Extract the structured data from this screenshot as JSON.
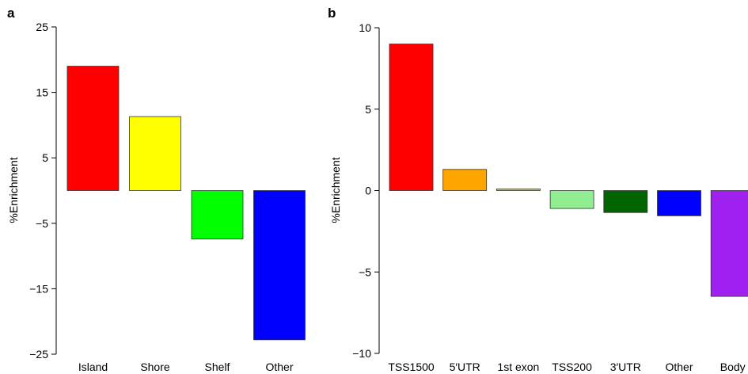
{
  "chart_data": [
    {
      "panel_label": "a",
      "type": "bar",
      "ylabel": "%Enrichment",
      "ylim": [
        -25,
        25
      ],
      "yticks": [
        25,
        15,
        5,
        -5,
        -15,
        -25
      ],
      "ytick_labels": [
        "25",
        "15",
        "5",
        "−5",
        "−15",
        "−25"
      ],
      "categories": [
        "Island",
        "Shore",
        "Shelf",
        "Other"
      ],
      "values": [
        19,
        11.3,
        -7.4,
        -22.8
      ],
      "colors": [
        "#ff0000",
        "#ffff00",
        "#00ff00",
        "#0000ff"
      ],
      "grid": false,
      "legend": "none"
    },
    {
      "panel_label": "b",
      "type": "bar",
      "ylabel": "%Enrichment",
      "ylim": [
        -10,
        10
      ],
      "yticks": [
        10,
        5,
        0,
        -5,
        -10
      ],
      "ytick_labels": [
        "10",
        "5",
        "0",
        "−5",
        "−10"
      ],
      "categories": [
        "TSS1500",
        "5′UTR",
        "1st exon",
        "TSS200",
        "3′UTR",
        "Other",
        "Body"
      ],
      "values": [
        9.0,
        1.3,
        0.1,
        -1.1,
        -1.35,
        -1.55,
        -6.5
      ],
      "colors": [
        "#ff0000",
        "#ffa500",
        "#e6d800",
        "#90ee90",
        "#006400",
        "#0000ff",
        "#a020f0"
      ],
      "grid": false,
      "legend": "none"
    }
  ]
}
